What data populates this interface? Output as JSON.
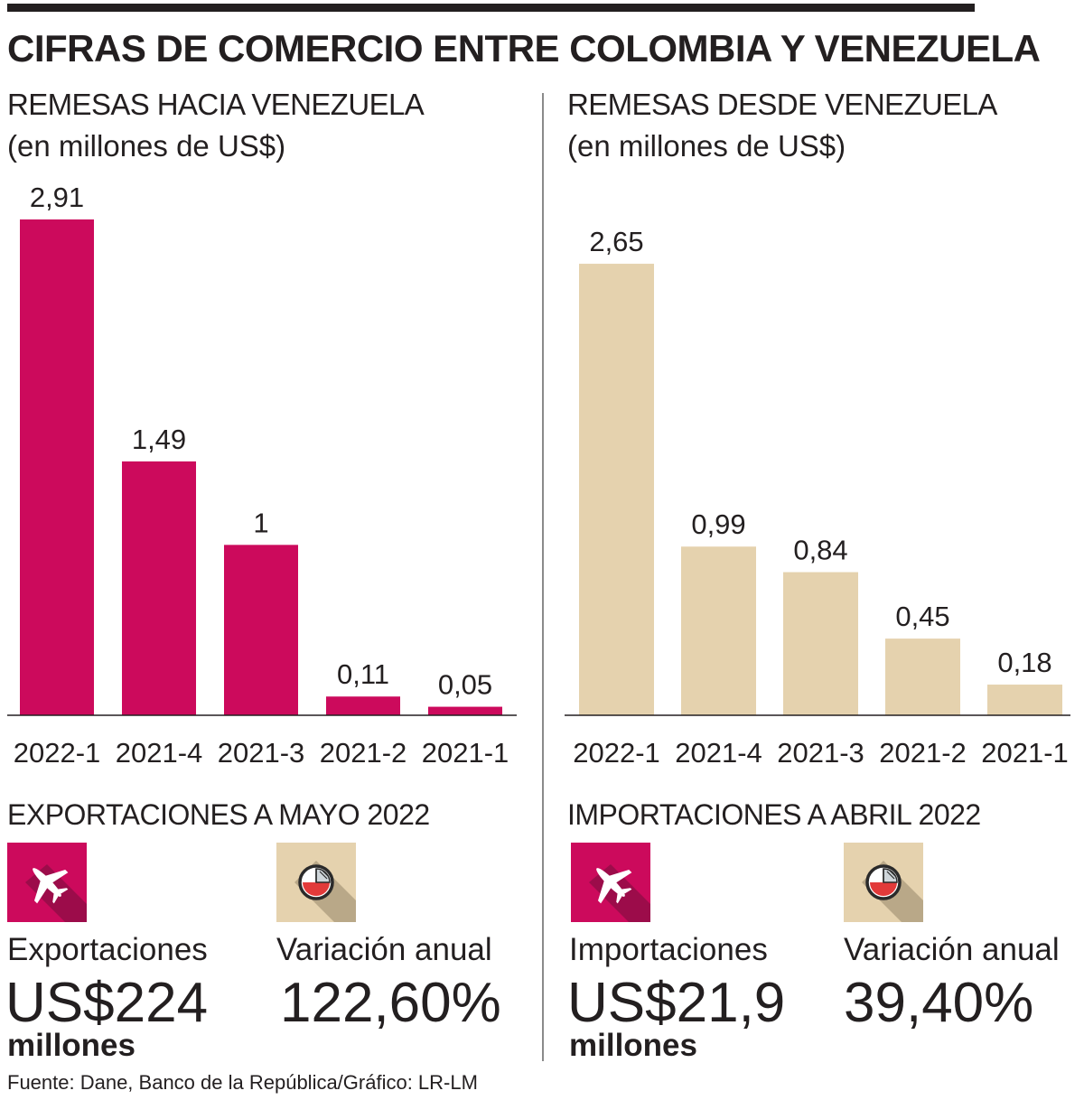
{
  "title": "CIFRAS DE COMERCIO ENTRE COLOMBIA Y VENEZUELA",
  "colors": {
    "magenta": "#cc0a5c",
    "beige": "#e5d2ae",
    "text": "#231f20",
    "tile_shadow_magenta": "#9c0c4a",
    "tile_shadow_beige": "#b9a888"
  },
  "chart_data": [
    {
      "type": "bar",
      "title": "REMESAS HACIA VENEZUELA",
      "subtitle": "(en millones de US$)",
      "categories": [
        "2022-1",
        "2021-4",
        "2021-3",
        "2021-2",
        "2021-1"
      ],
      "values": [
        2.91,
        1.49,
        1,
        0.11,
        0.05
      ],
      "value_labels": [
        "2,91",
        "1,49",
        "1",
        "0,11",
        "0,05"
      ],
      "color": "#cc0a5c",
      "ylim": [
        0,
        2.91
      ]
    },
    {
      "type": "bar",
      "title": "REMESAS DESDE VENEZUELA",
      "subtitle": "(en millones de US$)",
      "categories": [
        "2022-1",
        "2021-4",
        "2021-3",
        "2021-2",
        "2021-1"
      ],
      "values": [
        2.65,
        0.99,
        0.84,
        0.45,
        0.18
      ],
      "value_labels": [
        "2,65",
        "0,99",
        "0,84",
        "0,45",
        "0,18"
      ],
      "color": "#e5d2ae",
      "ylim": [
        0,
        2.91
      ]
    }
  ],
  "exports": {
    "title": "EXPORTACIONES A MAYO 2022",
    "icon_left": "airplane-icon",
    "icon_right": "pie-chart-icon",
    "label": "Exportaciones",
    "value": "US$224",
    "unit": "millones",
    "variation_label": "Variación anual",
    "variation_value": "122,60%"
  },
  "imports": {
    "title": "IMPORTACIONES A ABRIL 2022",
    "icon_left": "airplane-icon",
    "icon_right": "pie-chart-icon",
    "label": "Importaciones",
    "value": "US$21,9",
    "unit": "millones",
    "variation_label": "Variación anual",
    "variation_value": "39,40%"
  },
  "source": "Fuente: Dane, Banco de la República/Gráfico: LR-LM"
}
